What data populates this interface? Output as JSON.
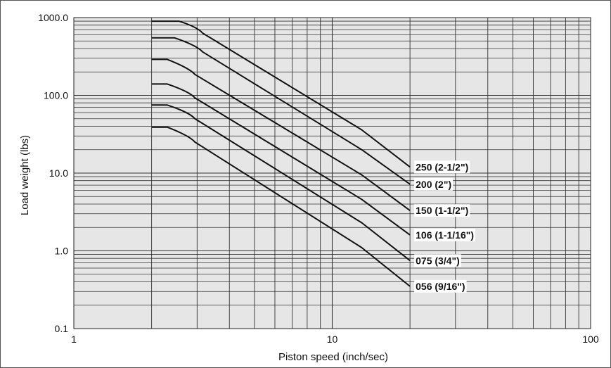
{
  "chart_data": {
    "type": "line",
    "xlabel": "Piston speed (inch/sec)",
    "ylabel": "Load weight (lbs)",
    "x_scale": "log",
    "y_scale": "log",
    "xlim": [
      1,
      100
    ],
    "ylim": [
      0.1,
      1000
    ],
    "grid": true,
    "background": "#e6e6e6",
    "line_color": "#111111",
    "x_ticks": [
      {
        "value": 1,
        "label": "1"
      },
      {
        "value": 10,
        "label": "10"
      },
      {
        "value": 100,
        "label": "100"
      }
    ],
    "y_ticks": [
      {
        "value": 0.1,
        "label": "0.1"
      },
      {
        "value": 1,
        "label": "1.0"
      },
      {
        "value": 10,
        "label": "10.0"
      },
      {
        "value": 100,
        "label": "100.0"
      },
      {
        "value": 1000,
        "label": "1000.0"
      }
    ],
    "series": [
      {
        "name": "250 (2-1/2\")",
        "points": [
          [
            2.0,
            900
          ],
          [
            2.55,
            900
          ],
          [
            3.0,
            680
          ],
          [
            13.0,
            36
          ],
          [
            20.0,
            12
          ]
        ]
      },
      {
        "name": "200 (2\")",
        "points": [
          [
            2.0,
            550
          ],
          [
            2.45,
            550
          ],
          [
            3.0,
            390
          ],
          [
            13.0,
            20
          ],
          [
            20.0,
            7.2
          ]
        ]
      },
      {
        "name": "150 (1-1/2\")",
        "points": [
          [
            2.0,
            290
          ],
          [
            2.3,
            290
          ],
          [
            2.8,
            200
          ],
          [
            13.0,
            9.5
          ],
          [
            20.0,
            3.3
          ]
        ]
      },
      {
        "name": "106 (1-1/16\")",
        "points": [
          [
            2.0,
            140
          ],
          [
            2.3,
            140
          ],
          [
            2.8,
            100
          ],
          [
            13.0,
            4.6
          ],
          [
            20.0,
            1.6
          ]
        ]
      },
      {
        "name": "075 (3/4\")",
        "points": [
          [
            2.0,
            75
          ],
          [
            2.3,
            75
          ],
          [
            2.8,
            54
          ],
          [
            13.0,
            2.3
          ],
          [
            20.0,
            0.75
          ]
        ]
      },
      {
        "name": "056 (9/16\")",
        "points": [
          [
            2.0,
            39
          ],
          [
            2.3,
            39
          ],
          [
            2.8,
            27
          ],
          [
            13.0,
            1.1
          ],
          [
            20.0,
            0.35
          ]
        ]
      }
    ]
  }
}
